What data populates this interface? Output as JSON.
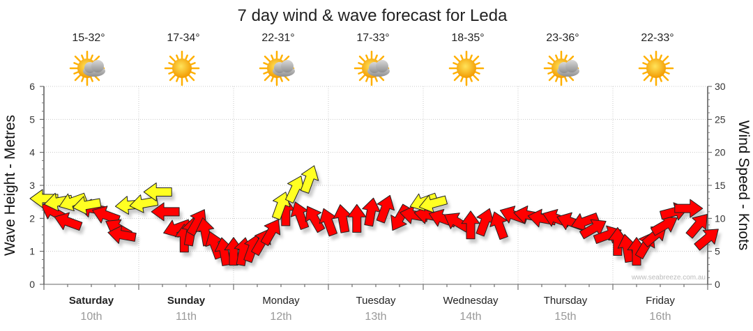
{
  "title": "7 day wind & wave forecast for Leda",
  "credit": "www.seabreeze.com.au",
  "colors": {
    "wind": "#ff0000",
    "wave": "#ffff22",
    "outline": "#222222",
    "sun": "#ffb000"
  },
  "days": [
    {
      "name": "Saturday",
      "date": "10th",
      "temp": "15-32°",
      "icon": "partly-cloudy-icon",
      "bold": true
    },
    {
      "name": "Sunday",
      "date": "11th",
      "temp": "17-34°",
      "icon": "sunny-icon",
      "bold": true
    },
    {
      "name": "Monday",
      "date": "12th",
      "temp": "22-31°",
      "icon": "partly-cloudy-icon",
      "bold": false
    },
    {
      "name": "Tuesday",
      "date": "13th",
      "temp": "17-33°",
      "icon": "partly-cloudy-icon",
      "bold": false
    },
    {
      "name": "Wednesday",
      "date": "14th",
      "temp": "18-35°",
      "icon": "sunny-icon",
      "bold": false
    },
    {
      "name": "Thursday",
      "date": "15th",
      "temp": "23-36°",
      "icon": "partly-cloudy-icon",
      "bold": false
    },
    {
      "name": "Friday",
      "date": "16th",
      "temp": "22-33°",
      "icon": "sunny-icon",
      "bold": false
    }
  ],
  "chart_data": {
    "type": "scatter",
    "title": "7 day wind & wave forecast for Leda",
    "y_left": {
      "label": "Wave Height - Metres",
      "range": [
        0,
        6
      ],
      "ticks": [
        "0",
        "1",
        "2",
        "3",
        "4",
        "5",
        "6"
      ]
    },
    "y_right": {
      "label": "Wind Speed - Knots",
      "range": [
        0,
        30
      ],
      "ticks": [
        "0",
        "5",
        "10",
        "15",
        "20",
        "25",
        "30"
      ]
    },
    "x_unit": "days",
    "x_range": [
      0,
      7
    ],
    "grid": true,
    "series": [
      {
        "name": "",
        "kind": "wind",
        "color": "#ff0000",
        "axis": "right",
        "points": [
          {
            "x": 0.1,
            "y": 11.0,
            "dir": -150
          },
          {
            "x": 0.25,
            "y": 9.5,
            "dir": -160
          },
          {
            "x": 0.5,
            "y": 11.5,
            "dir": -170
          },
          {
            "x": 0.65,
            "y": 10.5,
            "dir": -160
          },
          {
            "x": 0.78,
            "y": 8.5,
            "dir": -150
          },
          {
            "x": 0.82,
            "y": 7.5,
            "dir": -170
          },
          {
            "x": 1.28,
            "y": 11.0,
            "dir": 180
          },
          {
            "x": 1.4,
            "y": 8.5,
            "dir": 160
          },
          {
            "x": 1.48,
            "y": 7.0,
            "dir": -90
          },
          {
            "x": 1.55,
            "y": 8.0,
            "dir": -80
          },
          {
            "x": 1.62,
            "y": 9.5,
            "dir": -60
          },
          {
            "x": 1.7,
            "y": 8.0,
            "dir": -100
          },
          {
            "x": 1.8,
            "y": 6.0,
            "dir": -110
          },
          {
            "x": 1.9,
            "y": 5.0,
            "dir": -100
          },
          {
            "x": 2.0,
            "y": 5.0,
            "dir": -90
          },
          {
            "x": 2.1,
            "y": 5.0,
            "dir": -80
          },
          {
            "x": 2.2,
            "y": 5.5,
            "dir": -70
          },
          {
            "x": 2.3,
            "y": 6.5,
            "dir": -60
          },
          {
            "x": 2.4,
            "y": 8.0,
            "dir": -60
          },
          {
            "x": 2.55,
            "y": 11.0,
            "dir": -90
          },
          {
            "x": 2.7,
            "y": 10.5,
            "dir": -110
          },
          {
            "x": 2.85,
            "y": 10.0,
            "dir": -120
          },
          {
            "x": 3.0,
            "y": 9.5,
            "dir": -110
          },
          {
            "x": 3.15,
            "y": 10.0,
            "dir": -100
          },
          {
            "x": 3.3,
            "y": 10.0,
            "dir": -90
          },
          {
            "x": 3.45,
            "y": 11.0,
            "dir": -80
          },
          {
            "x": 3.6,
            "y": 11.5,
            "dir": -70
          },
          {
            "x": 3.75,
            "y": 10.0,
            "dir": 120
          },
          {
            "x": 3.9,
            "y": 10.5,
            "dir": -170
          },
          {
            "x": 4.05,
            "y": 10.5,
            "dir": -170
          },
          {
            "x": 4.2,
            "y": 10.0,
            "dir": -160
          },
          {
            "x": 4.35,
            "y": 9.5,
            "dir": -150
          },
          {
            "x": 4.5,
            "y": 9.0,
            "dir": -90
          },
          {
            "x": 4.65,
            "y": 9.5,
            "dir": -70
          },
          {
            "x": 4.8,
            "y": 9.0,
            "dir": -110
          },
          {
            "x": 4.95,
            "y": 10.5,
            "dir": -160
          },
          {
            "x": 5.1,
            "y": 10.5,
            "dir": -170
          },
          {
            "x": 5.25,
            "y": 10.0,
            "dir": -170
          },
          {
            "x": 5.4,
            "y": 10.0,
            "dir": -160
          },
          {
            "x": 5.55,
            "y": 9.5,
            "dir": -160
          },
          {
            "x": 5.7,
            "y": 9.5,
            "dir": 160
          },
          {
            "x": 5.8,
            "y": 8.5,
            "dir": -30
          },
          {
            "x": 5.95,
            "y": 7.5,
            "dir": -20
          },
          {
            "x": 6.05,
            "y": 6.5,
            "dir": -90
          },
          {
            "x": 6.15,
            "y": 5.5,
            "dir": -100
          },
          {
            "x": 6.25,
            "y": 5.0,
            "dir": -90
          },
          {
            "x": 6.35,
            "y": 6.0,
            "dir": -60
          },
          {
            "x": 6.45,
            "y": 7.5,
            "dir": -40
          },
          {
            "x": 6.55,
            "y": 9.0,
            "dir": -30
          },
          {
            "x": 6.65,
            "y": 11.0,
            "dir": -15
          },
          {
            "x": 6.8,
            "y": 11.5,
            "dir": 0
          },
          {
            "x": 6.9,
            "y": 9.0,
            "dir": -50
          },
          {
            "x": 7.0,
            "y": 7.0,
            "dir": -40
          }
        ]
      },
      {
        "name": "",
        "kind": "wave",
        "color": "#ffff22",
        "axis": "left",
        "points": [
          {
            "x": 0.0,
            "y": 2.6,
            "dir": 180
          },
          {
            "x": 0.15,
            "y": 2.5,
            "dir": 170
          },
          {
            "x": 0.3,
            "y": 2.5,
            "dir": 160
          },
          {
            "x": 0.45,
            "y": 2.4,
            "dir": 170
          },
          {
            "x": 0.9,
            "y": 2.4,
            "dir": 175
          },
          {
            "x": 1.05,
            "y": 2.45,
            "dir": 170
          },
          {
            "x": 1.2,
            "y": 2.8,
            "dir": 180
          },
          {
            "x": 2.5,
            "y": 2.4,
            "dir": -70
          },
          {
            "x": 2.65,
            "y": 2.9,
            "dir": -65
          },
          {
            "x": 2.8,
            "y": 3.2,
            "dir": -70
          },
          {
            "x": 4.0,
            "y": 2.5,
            "dir": 160
          },
          {
            "x": 4.1,
            "y": 2.45,
            "dir": 165
          }
        ]
      }
    ]
  }
}
